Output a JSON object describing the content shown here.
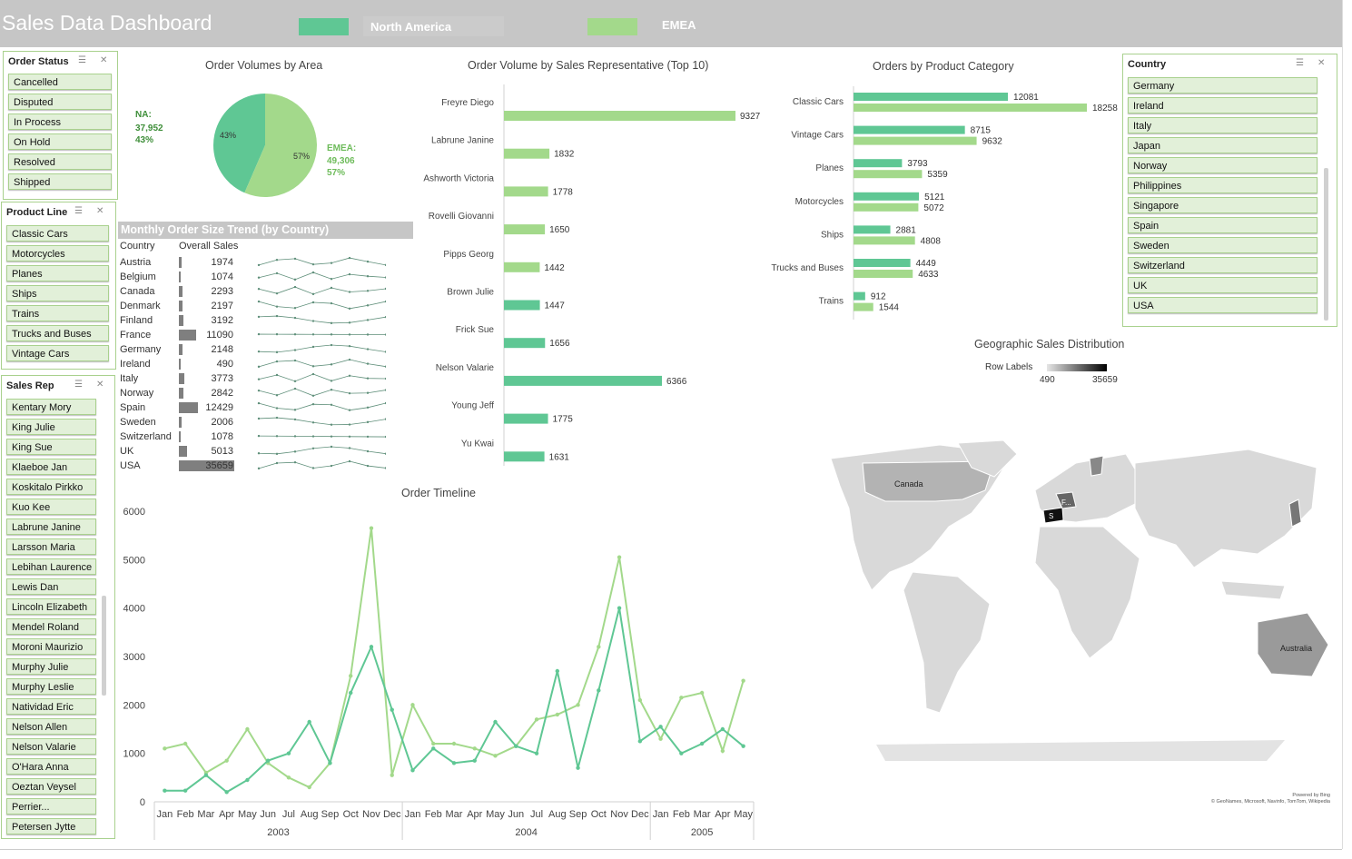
{
  "dashboard": {
    "title": "Sales Data Dashboard"
  },
  "legend": {
    "items": [
      {
        "label": "North America",
        "color": "#5fc794"
      },
      {
        "label": "EMEA",
        "color": "#a3d98b"
      }
    ]
  },
  "colors": {
    "na": "#5fc794",
    "emea": "#a3d98b",
    "header": "#c6c6c6",
    "slicer_btn": "#e2f0d9",
    "slicer_border": "#a9d18e"
  },
  "slicers": {
    "order_status": {
      "title": "Order Status",
      "items": [
        "Cancelled",
        "Disputed",
        "In Process",
        "On Hold",
        "Resolved",
        "Shipped"
      ]
    },
    "product_line": {
      "title": "Product Line",
      "items": [
        "Classic Cars",
        "Motorcycles",
        "Planes",
        "Ships",
        "Trains",
        "Trucks and Buses",
        "Vintage Cars"
      ]
    },
    "sales_rep": {
      "title": "Sales Rep",
      "items": [
        "Kentary Mory",
        "King Julie",
        "King Sue",
        "Klaeboe Jan",
        "Koskitalo Pirkko",
        "Kuo Kee",
        "Labrune Janine",
        "Larsson Maria",
        "Lebihan Laurence",
        "Lewis Dan",
        "Lincoln Elizabeth",
        "Mendel Roland",
        "Moroni Maurizio",
        "Murphy Julie",
        "Murphy Leslie",
        "Natividad Eric",
        "Nelson Allen",
        "Nelson Valarie",
        "O'Hara Anna",
        "Oeztan Veysel",
        "Perrier...",
        "Petersen Jytte"
      ]
    },
    "country": {
      "title": "Country",
      "items": [
        "Germany",
        "Ireland",
        "Italy",
        "Japan",
        "Norway",
        "Philippines",
        "Singapore",
        "Spain",
        "Sweden",
        "Switzerland",
        "UK",
        "USA"
      ]
    }
  },
  "pie": {
    "title": "Order Volumes by Area",
    "na_label": "NA:",
    "na_value": "37,952",
    "na_pct": "43%",
    "emea_label": "EMEA:",
    "emea_value": "49,306",
    "emea_pct": "57%",
    "slice_na_pct": "43%",
    "slice_emea_pct": "57%"
  },
  "monthly_trend": {
    "title": "Monthly Order Size Trend (by Country)",
    "col_country": "Country",
    "col_sales": "Overall Sales",
    "rows": [
      {
        "country": "Austria",
        "sales": "1974",
        "v": 1974
      },
      {
        "country": "Belgium",
        "sales": "1074",
        "v": 1074
      },
      {
        "country": "Canada",
        "sales": "2293",
        "v": 2293
      },
      {
        "country": "Denmark",
        "sales": "2197",
        "v": 2197
      },
      {
        "country": "Finland",
        "sales": "3192",
        "v": 3192
      },
      {
        "country": "France",
        "sales": "11090",
        "v": 11090
      },
      {
        "country": "Germany",
        "sales": "2148",
        "v": 2148
      },
      {
        "country": "Ireland",
        "sales": "490",
        "v": 490
      },
      {
        "country": "Italy",
        "sales": "3773",
        "v": 3773
      },
      {
        "country": "Norway",
        "sales": "2842",
        "v": 2842
      },
      {
        "country": "Spain",
        "sales": "12429",
        "v": 12429
      },
      {
        "country": "Sweden",
        "sales": "2006",
        "v": 2006
      },
      {
        "country": "Switzerland",
        "sales": "1078",
        "v": 1078
      },
      {
        "country": "UK",
        "sales": "5013",
        "v": 5013
      },
      {
        "country": "USA",
        "sales": "35659",
        "v": 35659
      }
    ]
  },
  "geo": {
    "title": "Geographic Sales Distribution",
    "legend_label": "Row Labels",
    "min": "490",
    "max": "35659",
    "labels": [
      "Canada",
      "Australia",
      "F...",
      "S"
    ],
    "credit1": "Powered by Bing",
    "credit2": "© GeoNames, Microsoft, Navinfo, TomTom, Wikipedia"
  },
  "chart_data": [
    {
      "type": "pie",
      "title": "Order Volumes by Area",
      "categories": [
        "NA",
        "EMEA"
      ],
      "values": [
        37952,
        49306
      ],
      "percent": [
        43,
        57
      ]
    },
    {
      "type": "bar",
      "title": "Order Volume by Sales Representative (Top 10)",
      "orientation": "horizontal",
      "categories": [
        "Freyre Diego",
        "Labrune Janine",
        "Ashworth Victoria",
        "Rovelli Giovanni",
        "Pipps Georg",
        "Brown Julie",
        "Frick Sue",
        "Nelson Valarie",
        "Young Jeff",
        "Yu Kwai"
      ],
      "values": [
        9327,
        1832,
        1778,
        1650,
        1442,
        1447,
        1656,
        6366,
        1775,
        1631
      ],
      "region": [
        "EMEA",
        "EMEA",
        "EMEA",
        "EMEA",
        "EMEA",
        "NA",
        "NA",
        "NA",
        "NA",
        "NA"
      ],
      "xlim": [
        0,
        10000
      ]
    },
    {
      "type": "bar",
      "title": "Orders by Product Category",
      "orientation": "horizontal",
      "categories": [
        "Classic Cars",
        "Vintage Cars",
        "Planes",
        "Motorcycles",
        "Ships",
        "Trucks and Buses",
        "Trains"
      ],
      "series": [
        {
          "values": [
            12081,
            8715,
            3793,
            5121,
            2881,
            4449,
            912
          ]
        },
        {
          "values": [
            18258,
            9632,
            5359,
            5072,
            4808,
            4633,
            1544
          ]
        }
      ],
      "xlim": [
        0,
        20000
      ]
    },
    {
      "type": "line",
      "title": "Order Timeline",
      "categories": [
        "Jan",
        "Feb",
        "Mar",
        "Apr",
        "May",
        "Jun",
        "Jul",
        "Aug",
        "Sep",
        "Oct",
        "Nov",
        "Dec",
        "Jan",
        "Feb",
        "Mar",
        "Apr",
        "May",
        "Jun",
        "Jul",
        "Aug",
        "Sep",
        "Oct",
        "Nov",
        "Dec",
        "Jan",
        "Feb",
        "Mar",
        "Apr",
        "May"
      ],
      "groups": [
        {
          "label": "2003",
          "span": 12
        },
        {
          "label": "2004",
          "span": 12
        },
        {
          "label": "2005",
          "span": 5
        }
      ],
      "series": [
        {
          "values": [
            230,
            230,
            550,
            200,
            450,
            850,
            1000,
            1650,
            800,
            2250,
            3200,
            1900,
            650,
            1100,
            800,
            850,
            1650,
            1150,
            1000,
            2700,
            700,
            2300,
            4000,
            1250,
            1550,
            1000,
            1200,
            1500,
            1150
          ]
        },
        {
          "values": [
            1100,
            1200,
            600,
            850,
            1500,
            800,
            500,
            300,
            800,
            2600,
            5650,
            550,
            2000,
            1200,
            1200,
            1100,
            950,
            1150,
            1700,
            1800,
            2000,
            3200,
            5050,
            2100,
            1300,
            2150,
            2250,
            1050,
            2500
          ]
        }
      ],
      "ylim": [
        0,
        6000
      ],
      "yticks": [
        0,
        1000,
        2000,
        3000,
        4000,
        5000,
        6000
      ]
    },
    {
      "type": "line",
      "title": "Monthly Order Size Trend (by Country)",
      "categories": [
        "Austria",
        "Belgium",
        "Canada",
        "Denmark",
        "Finland",
        "France",
        "Germany",
        "Ireland",
        "Italy",
        "Norway",
        "Spain",
        "Sweden",
        "Switzerland",
        "UK",
        "USA"
      ],
      "values": [
        1974,
        1074,
        2293,
        2197,
        3192,
        11090,
        2148,
        490,
        3773,
        2842,
        12429,
        2006,
        1078,
        5013,
        35659
      ],
      "column": "Overall Sales"
    }
  ]
}
